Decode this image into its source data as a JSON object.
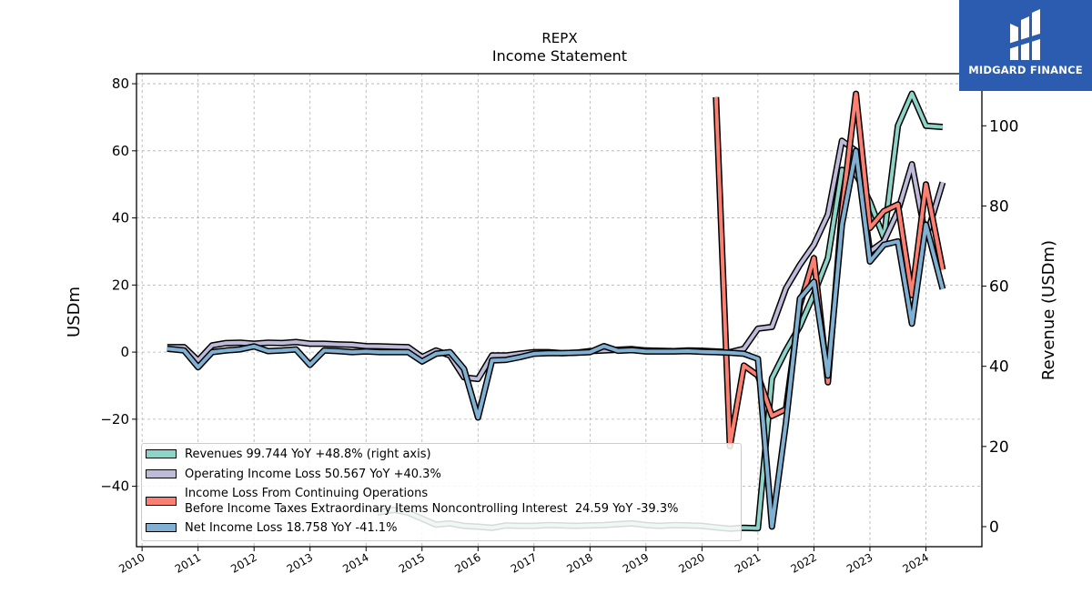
{
  "chart": {
    "title": "REPX",
    "subtitle": "Income Statement",
    "ylabel": "USDm",
    "ylabel_right": "Revenue (USDm)",
    "brand": "MIDGARD FINANCE"
  },
  "chart_data": {
    "type": "line",
    "title": "REPX Income Statement",
    "xlabel": "",
    "ylabel": "USDm",
    "ylabel_right": "Revenue (USDm)",
    "ylim": [
      -58,
      83
    ],
    "ylim_right": [
      -5,
      113
    ],
    "xlim": [
      2009.9,
      2025.0
    ],
    "grid": true,
    "legend_position": "lower-left",
    "x_ticks": [
      "2010",
      "2011",
      "2012",
      "2013",
      "2014",
      "2015",
      "2016",
      "2017",
      "2018",
      "2019",
      "2020",
      "2021",
      "2022",
      "2023",
      "2024"
    ],
    "y_ticks": [
      80,
      60,
      40,
      20,
      0,
      -20,
      -40
    ],
    "y_ticks_right": [
      100,
      80,
      60,
      40,
      20,
      0
    ],
    "series": [
      {
        "name": "Revenues  99.744 YoY +48.8% (right axis)",
        "color": "#8dd3c7",
        "axis": "right",
        "order": 1,
        "x": [
          2014.2,
          2014.5,
          2014.75,
          2015.0,
          2015.25,
          2015.5,
          2015.75,
          2016.0,
          2016.25,
          2016.5,
          2016.75,
          2017.0,
          2017.25,
          2017.5,
          2017.75,
          2018.0,
          2018.25,
          2018.5,
          2018.75,
          2019.0,
          2019.25,
          2019.5,
          2019.75,
          2020.0,
          2020.25,
          2020.5,
          2020.75,
          2021.0,
          2021.25,
          2021.5,
          2021.75,
          2022.0,
          2022.25,
          2022.5,
          2022.75,
          2023.0,
          2023.25,
          2023.5,
          2023.75,
          2024.0,
          2024.3
        ],
        "y": [
          3.5,
          4.2,
          3.5,
          2.0,
          0.5,
          0.8,
          0.2,
          0,
          -0.3,
          0.3,
          0.2,
          0.2,
          0.4,
          0.3,
          0.2,
          0.3,
          0.4,
          0.6,
          0.8,
          0.4,
          0.2,
          0.4,
          0.3,
          0.2,
          -0.2,
          -0.5,
          -0.3,
          -0.4,
          37,
          44,
          50,
          58,
          67,
          89,
          88,
          81,
          72,
          100,
          108,
          100,
          99.7
        ]
      },
      {
        "name": "Operating Income Loss  50.567 YoY +40.3%",
        "color": "#bebada",
        "axis": "left",
        "order": 2,
        "x": [
          2010.45,
          2010.75,
          2011.0,
          2011.25,
          2011.5,
          2011.75,
          2012.0,
          2012.25,
          2012.5,
          2012.75,
          2013.0,
          2013.25,
          2013.5,
          2013.75,
          2014.0,
          2014.25,
          2014.5,
          2014.75,
          2015.0,
          2015.25,
          2015.5,
          2015.75,
          2016.0,
          2016.25,
          2016.5,
          2016.75,
          2017.0,
          2017.25,
          2017.5,
          2017.75,
          2018.0,
          2018.25,
          2018.5,
          2018.75,
          2019.0,
          2019.25,
          2019.5,
          2019.75,
          2020.0,
          2020.25,
          2020.5,
          2020.75,
          2021.0,
          2021.25,
          2021.5,
          2021.75,
          2022.0,
          2022.25,
          2022.5,
          2022.75,
          2023.0,
          2023.25,
          2023.5,
          2023.75,
          2024.0,
          2024.3
        ],
        "y": [
          1.5,
          1.5,
          -2.5,
          2.0,
          2.7,
          2.8,
          2.5,
          2.8,
          2.7,
          3.0,
          2.5,
          2.5,
          2.3,
          2.2,
          1.8,
          1.7,
          1.6,
          1.5,
          -1.5,
          0.5,
          -1.0,
          -7.5,
          -8.0,
          -1.0,
          -1.0,
          -0.5,
          0,
          0,
          -0.3,
          -0.2,
          0.3,
          0.5,
          0.7,
          0.9,
          0.5,
          0.4,
          0.3,
          0.5,
          0.4,
          0.2,
          0,
          1.0,
          7.0,
          7.5,
          19,
          26,
          32,
          41,
          63,
          60,
          30,
          33,
          42,
          56,
          34,
          50.6
        ]
      },
      {
        "name": "Income Loss From Continuing Operations\nBefore Income Taxes Extraordinary Items Noncontrolling Interest  24.59 YoY -39.3%",
        "color": "#fb8072",
        "axis": "left",
        "order": 3,
        "x": [
          2020.25,
          2020.5,
          2020.75,
          2021.0,
          2021.25,
          2021.5,
          2021.75,
          2022.0,
          2022.25,
          2022.5,
          2022.75,
          2023.0,
          2023.25,
          2023.5,
          2023.75,
          2024.0,
          2024.3
        ],
        "y": [
          76,
          -28,
          -4,
          -7,
          -19,
          -17,
          14,
          28,
          -9,
          42,
          77,
          37,
          42,
          44,
          17,
          50,
          24.6
        ]
      },
      {
        "name": "Net Income Loss  18.758 YoY -41.1%",
        "color": "#80b1d3",
        "axis": "left",
        "order": 4,
        "x": [
          2010.45,
          2010.75,
          2011.0,
          2011.25,
          2011.5,
          2011.75,
          2012.0,
          2012.25,
          2012.5,
          2012.75,
          2013.0,
          2013.25,
          2013.5,
          2013.75,
          2014.0,
          2014.25,
          2014.5,
          2014.75,
          2015.0,
          2015.25,
          2015.5,
          2015.75,
          2016.0,
          2016.25,
          2016.5,
          2016.75,
          2017.0,
          2017.25,
          2017.5,
          2017.75,
          2018.0,
          2018.25,
          2018.5,
          2018.75,
          2019.0,
          2019.25,
          2019.5,
          2019.75,
          2020.0,
          2020.25,
          2020.5,
          2020.75,
          2021.0,
          2021.25,
          2021.5,
          2021.75,
          2022.0,
          2022.25,
          2022.5,
          2022.75,
          2023.0,
          2023.25,
          2023.5,
          2023.75,
          2024.0,
          2024.3
        ],
        "y": [
          1.0,
          0.5,
          -4.5,
          0,
          0.5,
          0.8,
          1.7,
          0.3,
          0.5,
          0.8,
          -3.8,
          0.5,
          0.3,
          0,
          0.2,
          0,
          0,
          0,
          -2.8,
          -0.5,
          0,
          -5.0,
          -19.5,
          -2.5,
          -2.3,
          -1.5,
          -0.5,
          -0.3,
          -0.3,
          -0.2,
          0,
          1.8,
          0.4,
          0.6,
          0.2,
          0.2,
          0.2,
          0.3,
          0.1,
          0,
          -0.2,
          -0.5,
          -2.0,
          -52,
          -21,
          16,
          21,
          -7,
          38,
          60,
          27,
          32,
          33,
          8.5,
          38,
          18.8
        ]
      }
    ]
  }
}
